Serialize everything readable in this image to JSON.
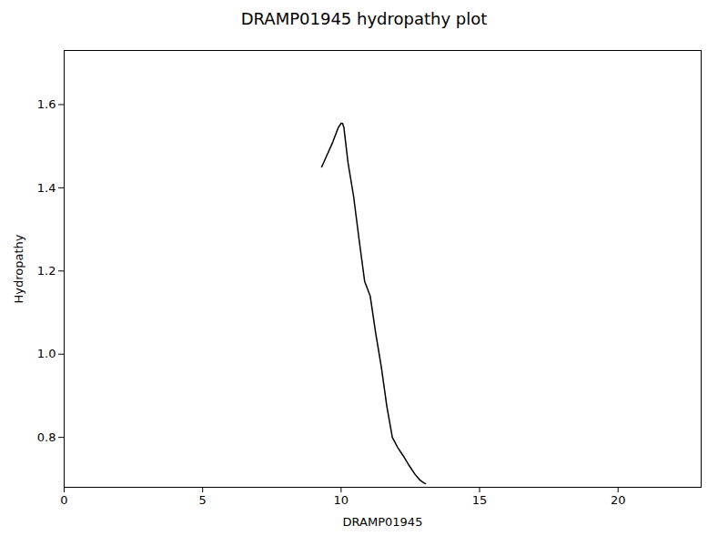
{
  "chart_data": {
    "type": "line",
    "title": "DRAMP01945 hydropathy plot",
    "xlabel": "DRAMP01945",
    "ylabel": "Hydropathy",
    "x": [
      9.3,
      9.5,
      9.7,
      9.9,
      10.0,
      10.05,
      10.1,
      10.25,
      10.45,
      10.65,
      10.85,
      11.05,
      11.25,
      11.45,
      11.65,
      11.85,
      12.05,
      12.25,
      12.45,
      12.65,
      12.85,
      13.0,
      13.05
    ],
    "values": [
      1.45,
      1.48,
      1.51,
      1.545,
      1.555,
      1.555,
      1.545,
      1.46,
      1.38,
      1.275,
      1.175,
      1.14,
      1.05,
      0.97,
      0.875,
      0.8,
      0.775,
      0.755,
      0.733,
      0.713,
      0.697,
      0.69,
      0.689
    ],
    "color": "#000000",
    "xlim": [
      0,
      23
    ],
    "ylim": [
      0.68,
      1.73
    ],
    "xticks": [
      0,
      5,
      10,
      15,
      20
    ],
    "yticks": [
      0.8,
      {
        "value": 1.0,
        "label": "1.0"
      },
      1.2,
      1.4,
      1.6
    ],
    "grid": false
  }
}
